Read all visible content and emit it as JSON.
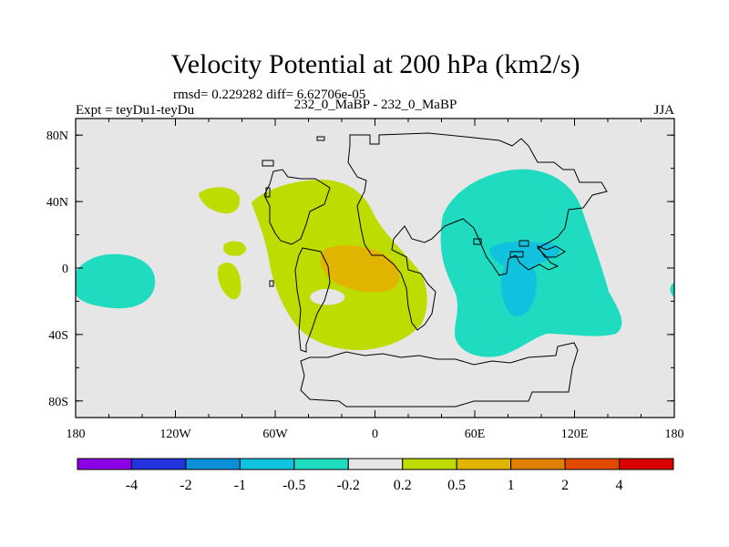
{
  "chart_data": {
    "type": "heatmap",
    "title": "Velocity Potential at 200 hPa (km2/s)",
    "stats_text": "rmsd= 0.229282 diff= 6.62706e-05",
    "experiment_label": "Expt = teyDu1-teyDu",
    "comparison_label": "232_0_MaBP - 232_0_MaBP",
    "season": "JJA",
    "xlim": [
      -180,
      180
    ],
    "ylim": [
      -90,
      90
    ],
    "x_tick_labels": [
      "180",
      "120W",
      "60W",
      "0",
      "60E",
      "120E",
      "180"
    ],
    "x_tick_values": [
      -180,
      -120,
      -60,
      0,
      60,
      120,
      180
    ],
    "y_tick_labels": [
      "80N",
      "40N",
      "0",
      "40S",
      "80S"
    ],
    "y_tick_values": [
      80,
      40,
      0,
      -40,
      -80
    ],
    "colorbar": {
      "colors": [
        "#8c00e6",
        "#2233dd",
        "#0a8fd8",
        "#11c2df",
        "#1fdcc0",
        "#e6e6e6",
        "#bedc00",
        "#e0b400",
        "#e08000",
        "#e24a00",
        "#d80000"
      ],
      "labels": [
        "-4",
        "-2",
        "-1",
        "-0.5",
        "-0.2",
        "0.2",
        "0.5",
        "1",
        "2",
        "4"
      ]
    },
    "regions": [
      {
        "name": "positive-0.2-0.5-region",
        "value_range": "0.2 to 0.5"
      },
      {
        "name": "positive-0.5-1-region",
        "value_range": "0.5 to 1"
      },
      {
        "name": "negative-0.2-0.5-region",
        "value_range": "-0.5 to -0.2"
      },
      {
        "name": "negative-0.5-1-region",
        "value_range": "-1 to -0.5"
      }
    ]
  }
}
